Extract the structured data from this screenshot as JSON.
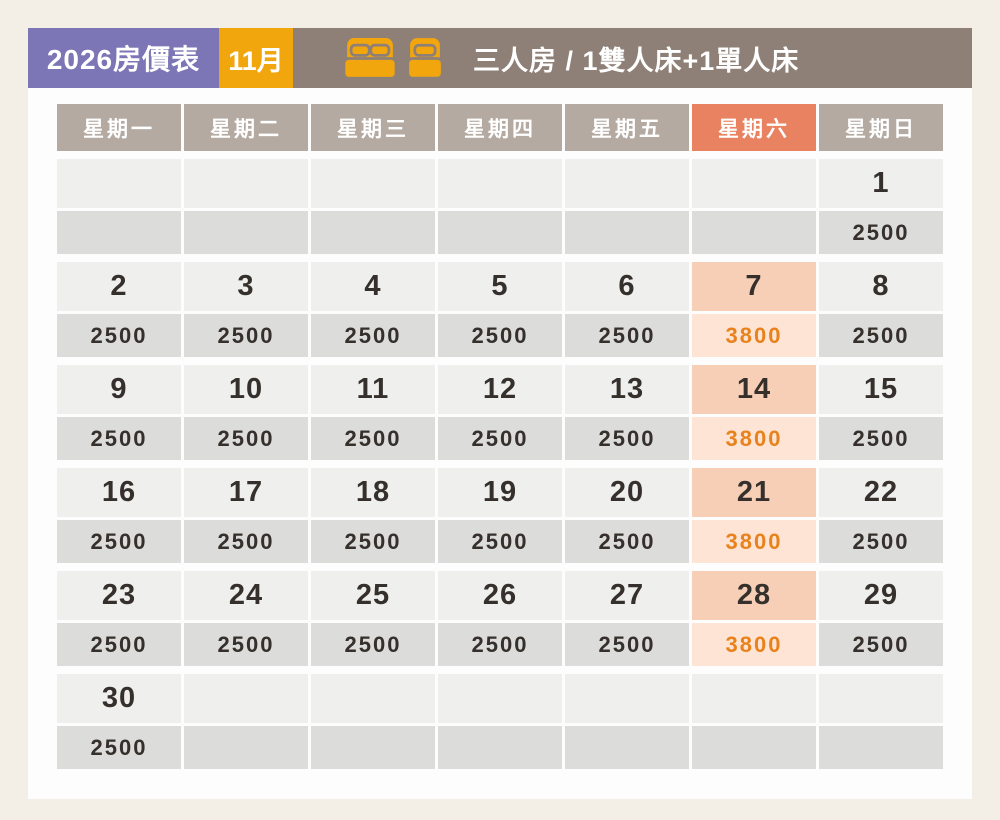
{
  "header": {
    "year_badge": "2026房價表",
    "month_badge": "11月",
    "room_title": "三人房 / 1雙人床+1單人床",
    "icons": [
      "double-bed-icon",
      "single-bed-icon"
    ]
  },
  "colors": {
    "page_bg": "#f4efe6",
    "card_bg": "#fdfdfd",
    "purple": "#7c76b6",
    "gold": "#f2a60d",
    "brown": "#8e8077",
    "weekday_bg": "#b4aaa2",
    "saturday_header_bg": "#e88260",
    "day_bg": "#efefed",
    "price_bg": "#dcdcda",
    "saturday_day_bg": "#f7cfb6",
    "saturday_price_bg": "#fde4d5",
    "price_highlight_text": "#e8821c",
    "text_dark": "#36302c",
    "text_white": "#ffffff"
  },
  "calendar": {
    "weekday_headers": [
      {
        "label": "星期一",
        "highlight": false
      },
      {
        "label": "星期二",
        "highlight": false
      },
      {
        "label": "星期三",
        "highlight": false
      },
      {
        "label": "星期四",
        "highlight": false
      },
      {
        "label": "星期五",
        "highlight": false
      },
      {
        "label": "星期六",
        "highlight": true
      },
      {
        "label": "星期日",
        "highlight": false
      }
    ],
    "weeks": [
      {
        "cells": [
          {
            "day": "",
            "price": "",
            "highlight": false
          },
          {
            "day": "",
            "price": "",
            "highlight": false
          },
          {
            "day": "",
            "price": "",
            "highlight": false
          },
          {
            "day": "",
            "price": "",
            "highlight": false
          },
          {
            "day": "",
            "price": "",
            "highlight": false
          },
          {
            "day": "",
            "price": "",
            "highlight": false
          },
          {
            "day": "1",
            "price": "2500",
            "highlight": false
          }
        ]
      },
      {
        "cells": [
          {
            "day": "2",
            "price": "2500",
            "highlight": false
          },
          {
            "day": "3",
            "price": "2500",
            "highlight": false
          },
          {
            "day": "4",
            "price": "2500",
            "highlight": false
          },
          {
            "day": "5",
            "price": "2500",
            "highlight": false
          },
          {
            "day": "6",
            "price": "2500",
            "highlight": false
          },
          {
            "day": "7",
            "price": "3800",
            "highlight": true
          },
          {
            "day": "8",
            "price": "2500",
            "highlight": false
          }
        ]
      },
      {
        "cells": [
          {
            "day": "9",
            "price": "2500",
            "highlight": false
          },
          {
            "day": "10",
            "price": "2500",
            "highlight": false
          },
          {
            "day": "11",
            "price": "2500",
            "highlight": false
          },
          {
            "day": "12",
            "price": "2500",
            "highlight": false
          },
          {
            "day": "13",
            "price": "2500",
            "highlight": false
          },
          {
            "day": "14",
            "price": "3800",
            "highlight": true
          },
          {
            "day": "15",
            "price": "2500",
            "highlight": false
          }
        ]
      },
      {
        "cells": [
          {
            "day": "16",
            "price": "2500",
            "highlight": false
          },
          {
            "day": "17",
            "price": "2500",
            "highlight": false
          },
          {
            "day": "18",
            "price": "2500",
            "highlight": false
          },
          {
            "day": "19",
            "price": "2500",
            "highlight": false
          },
          {
            "day": "20",
            "price": "2500",
            "highlight": false
          },
          {
            "day": "21",
            "price": "3800",
            "highlight": true
          },
          {
            "day": "22",
            "price": "2500",
            "highlight": false
          }
        ]
      },
      {
        "cells": [
          {
            "day": "23",
            "price": "2500",
            "highlight": false
          },
          {
            "day": "24",
            "price": "2500",
            "highlight": false
          },
          {
            "day": "25",
            "price": "2500",
            "highlight": false
          },
          {
            "day": "26",
            "price": "2500",
            "highlight": false
          },
          {
            "day": "27",
            "price": "2500",
            "highlight": false
          },
          {
            "day": "28",
            "price": "3800",
            "highlight": true
          },
          {
            "day": "29",
            "price": "2500",
            "highlight": false
          }
        ]
      },
      {
        "cells": [
          {
            "day": "30",
            "price": "2500",
            "highlight": false
          },
          {
            "day": "",
            "price": "",
            "highlight": false
          },
          {
            "day": "",
            "price": "",
            "highlight": false
          },
          {
            "day": "",
            "price": "",
            "highlight": false
          },
          {
            "day": "",
            "price": "",
            "highlight": false
          },
          {
            "day": "",
            "price": "",
            "highlight": false
          },
          {
            "day": "",
            "price": "",
            "highlight": false
          }
        ]
      }
    ]
  }
}
